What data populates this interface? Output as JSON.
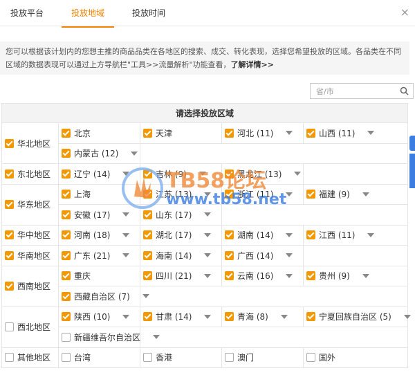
{
  "tabs": [
    {
      "label": "投放平台",
      "active": false
    },
    {
      "label": "投放地域",
      "active": true
    },
    {
      "label": "投放时间",
      "active": false
    }
  ],
  "notice": {
    "text": "您可以根据该计划内的您想主推的商品品类在各地区的搜索、成交、转化表现，选择您希望投放的区域。各品类在不同区域的数据表现可以通过上方导航栏\"工具>>流量解析\"功能查看，",
    "link": "了解详情>>"
  },
  "search": {
    "placeholder": "省/市"
  },
  "table": {
    "header": "请选择投放区域",
    "regions": [
      {
        "name": "华北地区",
        "checked": true,
        "items": [
          {
            "name": "北京",
            "checked": true,
            "dropdown": false
          },
          {
            "name": "天津",
            "checked": true,
            "dropdown": false
          },
          {
            "name": "河北 (11)",
            "checked": true,
            "dropdown": true
          },
          {
            "name": "山西 (11)",
            "checked": true,
            "dropdown": true
          },
          {
            "name": "内蒙古 (12)",
            "checked": true,
            "dropdown": true
          }
        ]
      },
      {
        "name": "东北地区",
        "checked": true,
        "items": [
          {
            "name": "辽宁 (14)",
            "checked": true,
            "dropdown": true
          },
          {
            "name": "吉林 (9)",
            "checked": true,
            "dropdown": true
          },
          {
            "name": "黑龙江 (13)",
            "checked": true,
            "dropdown": true
          }
        ]
      },
      {
        "name": "华东地区",
        "checked": true,
        "items": [
          {
            "name": "上海",
            "checked": true,
            "dropdown": false
          },
          {
            "name": "江苏 (13)",
            "checked": true,
            "dropdown": true
          },
          {
            "name": "浙江 (11)",
            "checked": true,
            "dropdown": true
          },
          {
            "name": "福建 (9)",
            "checked": true,
            "dropdown": true
          },
          {
            "name": "安徽 (17)",
            "checked": true,
            "dropdown": true
          },
          {
            "name": "山东 (17)",
            "checked": true,
            "dropdown": true
          }
        ]
      },
      {
        "name": "华中地区",
        "checked": true,
        "items": [
          {
            "name": "河南 (18)",
            "checked": true,
            "dropdown": true
          },
          {
            "name": "湖北 (17)",
            "checked": true,
            "dropdown": true
          },
          {
            "name": "湖南 (14)",
            "checked": true,
            "dropdown": true
          },
          {
            "name": "江西 (11)",
            "checked": true,
            "dropdown": true
          }
        ]
      },
      {
        "name": "华南地区",
        "checked": true,
        "items": [
          {
            "name": "广东 (21)",
            "checked": true,
            "dropdown": true
          },
          {
            "name": "海南 (14)",
            "checked": true,
            "dropdown": true
          },
          {
            "name": "广西 (14)",
            "checked": true,
            "dropdown": true
          }
        ]
      },
      {
        "name": "西南地区",
        "checked": true,
        "items": [
          {
            "name": "重庆",
            "checked": true,
            "dropdown": false
          },
          {
            "name": "四川 (21)",
            "checked": true,
            "dropdown": true
          },
          {
            "name": "云南 (16)",
            "checked": true,
            "dropdown": true
          },
          {
            "name": "贵州 (9)",
            "checked": true,
            "dropdown": true
          },
          {
            "name": "西藏自治区 (7)",
            "checked": true,
            "dropdown": true
          }
        ]
      },
      {
        "name": "西北地区",
        "checked": false,
        "items": [
          {
            "name": "陕西 (10)",
            "checked": true,
            "dropdown": true
          },
          {
            "name": "甘肃 (14)",
            "checked": true,
            "dropdown": true
          },
          {
            "name": "青海 (8)",
            "checked": true,
            "dropdown": true
          },
          {
            "name": "宁夏回族自治区 (5)",
            "checked": true,
            "dropdown": true
          },
          {
            "name": "新疆维吾尔自治区",
            "checked": false,
            "dropdown": true
          }
        ]
      },
      {
        "name": "其他地区",
        "checked": false,
        "items": [
          {
            "name": "台湾",
            "checked": false,
            "dropdown": false
          },
          {
            "name": "香港",
            "checked": false,
            "dropdown": false
          },
          {
            "name": "澳门",
            "checked": false,
            "dropdown": false
          },
          {
            "name": "国外",
            "checked": false,
            "dropdown": false
          }
        ]
      }
    ]
  },
  "watermark": {
    "title": "TB58论坛",
    "url": "www.tb58.net"
  }
}
